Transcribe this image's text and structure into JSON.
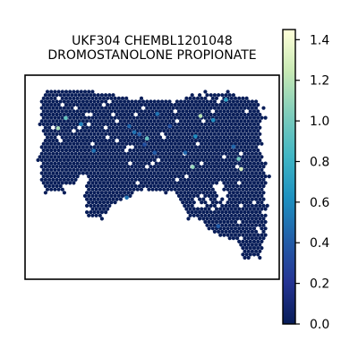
{
  "chart_data": {
    "type": "scatter",
    "subtype": "spatial-hex-spot-map",
    "title_line1": "UKF304 CHEMBL1201048",
    "title_line2": "DROMOSTANOLONE PROPIONATE",
    "xlabel": "",
    "ylabel": "",
    "axes_ticks_visible": false,
    "colormap": "YlGnBu_r",
    "colormap_stops": [
      "#081d58",
      "#253494",
      "#225ea8",
      "#1d91c0",
      "#41b6c4",
      "#7fcdbb",
      "#c7e9b4",
      "#ffffd9"
    ],
    "colorbar": {
      "min": 0.0,
      "max": 1.45,
      "ticks": [
        0.0,
        0.2,
        0.4,
        0.6,
        0.8,
        1.0,
        1.2,
        1.4
      ],
      "tick_labels": [
        "0.0",
        "0.2",
        "0.4",
        "0.6",
        "0.8",
        "1.0",
        "1.2",
        "1.4"
      ]
    },
    "background_value": 0.0,
    "highlight_points": [
      {
        "x": 0.16,
        "y": 0.79,
        "value": 0.95
      },
      {
        "x": 0.13,
        "y": 0.74,
        "value": 1.15
      },
      {
        "x": 0.22,
        "y": 0.76,
        "value": 0.55
      },
      {
        "x": 0.27,
        "y": 0.63,
        "value": 0.5
      },
      {
        "x": 0.41,
        "y": 0.75,
        "value": 0.45
      },
      {
        "x": 0.45,
        "y": 0.71,
        "value": 0.42
      },
      {
        "x": 0.48,
        "y": 0.69,
        "value": 0.95
      },
      {
        "x": 0.43,
        "y": 0.72,
        "value": 0.5
      },
      {
        "x": 0.51,
        "y": 0.62,
        "value": 0.4
      },
      {
        "x": 0.47,
        "y": 0.66,
        "value": 0.35
      },
      {
        "x": 0.52,
        "y": 0.81,
        "value": 0.5
      },
      {
        "x": 0.57,
        "y": 0.75,
        "value": 0.35
      },
      {
        "x": 0.63,
        "y": 0.62,
        "value": 0.45
      },
      {
        "x": 0.69,
        "y": 0.8,
        "value": 1.2
      },
      {
        "x": 0.66,
        "y": 0.55,
        "value": 1.1
      },
      {
        "x": 0.67,
        "y": 0.7,
        "value": 0.6
      },
      {
        "x": 0.74,
        "y": 0.78,
        "value": 0.6
      },
      {
        "x": 0.79,
        "y": 0.88,
        "value": 0.7
      },
      {
        "x": 0.84,
        "y": 0.59,
        "value": 1.0
      },
      {
        "x": 0.85,
        "y": 0.54,
        "value": 1.3
      },
      {
        "x": 0.82,
        "y": 0.65,
        "value": 0.45
      },
      {
        "x": 0.4,
        "y": 0.4,
        "value": 0.5
      },
      {
        "x": 0.76,
        "y": 0.26,
        "value": 0.4
      }
    ]
  }
}
